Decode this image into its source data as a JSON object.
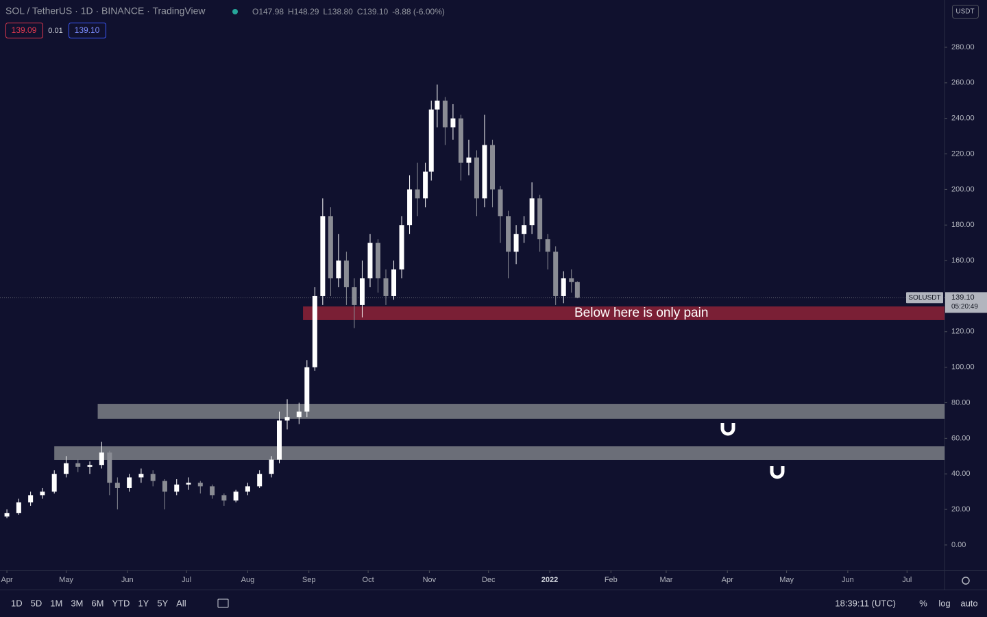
{
  "header": {
    "symbol": "SOL / TetherUS · 1D · BINANCE · TradingView",
    "ohlc": [
      "O147.98",
      "H148.29",
      "L138.80",
      "C139.10",
      "-8.88 (-6.00%)"
    ],
    "sell": "139.09",
    "spread": "0.01",
    "buy": "139.10"
  },
  "chart_data": {
    "type": "candlestick",
    "currency": "USDT",
    "up_color": "#ffffff",
    "down_color": "#8a8c94",
    "x": [
      0,
      6,
      12,
      18,
      24,
      30,
      36,
      42,
      48,
      52,
      56,
      62,
      68,
      74,
      80,
      86,
      92,
      98,
      104,
      110,
      116,
      122,
      128,
      134,
      138,
      142,
      148,
      152,
      156,
      160,
      164,
      168,
      172,
      176,
      180,
      184,
      188,
      192,
      196,
      200,
      204,
      208,
      212,
      215,
      218,
      222,
      226,
      230,
      234,
      238,
      242,
      246,
      250,
      254,
      258,
      262,
      266,
      270,
      274,
      278,
      282,
      286,
      289
    ],
    "open": [
      16,
      18,
      24,
      28,
      30,
      40,
      46,
      44,
      45,
      52,
      35,
      32,
      38,
      40,
      36,
      30,
      34,
      35,
      33,
      28,
      25,
      30,
      33,
      40,
      48,
      70,
      72,
      75,
      100,
      140,
      185,
      150,
      160,
      145,
      135,
      150,
      170,
      150,
      140,
      155,
      180,
      200,
      195,
      210,
      245,
      250,
      235,
      240,
      215,
      218,
      195,
      225,
      200,
      185,
      165,
      175,
      180,
      195,
      172,
      165,
      140,
      150,
      148
    ],
    "high": [
      20,
      26,
      30,
      32,
      42,
      50,
      48,
      47,
      58,
      53,
      38,
      40,
      43,
      42,
      37,
      37,
      38,
      36,
      34,
      29,
      31,
      35,
      42,
      50,
      75,
      82,
      80,
      104,
      145,
      195,
      190,
      175,
      165,
      150,
      160,
      175,
      172,
      155,
      160,
      185,
      208,
      215,
      215,
      250,
      259,
      252,
      248,
      242,
      228,
      222,
      242,
      228,
      202,
      188,
      180,
      185,
      204,
      197,
      175,
      168,
      154,
      155,
      148.29
    ],
    "low": [
      15,
      17,
      22,
      26,
      29,
      38,
      41,
      40,
      43,
      28,
      20,
      30,
      35,
      33,
      20,
      28,
      31,
      29,
      26,
      22,
      24,
      28,
      32,
      38,
      46,
      65,
      68,
      72,
      98,
      135,
      140,
      145,
      135,
      122,
      128,
      145,
      142,
      135,
      138,
      150,
      175,
      185,
      190,
      205,
      235,
      225,
      228,
      205,
      208,
      185,
      190,
      190,
      170,
      150,
      158,
      170,
      175,
      165,
      155,
      135,
      136,
      142,
      138.8
    ],
    "close": [
      18,
      24,
      28,
      30,
      40,
      46,
      44,
      45,
      52,
      35,
      32,
      38,
      40,
      36,
      30,
      34,
      35,
      33,
      28,
      25,
      30,
      33,
      40,
      48,
      70,
      72,
      75,
      100,
      140,
      185,
      150,
      160,
      145,
      135,
      150,
      170,
      150,
      140,
      155,
      180,
      200,
      195,
      210,
      245,
      250,
      235,
      240,
      215,
      218,
      195,
      225,
      200,
      185,
      165,
      175,
      180,
      195,
      172,
      165,
      140,
      150,
      148,
      139.1
    ],
    "xlim": [
      -3.5,
      475
    ],
    "xticks": [
      {
        "value": 0,
        "label": "Apr"
      },
      {
        "value": 30,
        "label": "May"
      },
      {
        "value": 61,
        "label": "Jun"
      },
      {
        "value": 91,
        "label": "Jul"
      },
      {
        "value": 122,
        "label": "Aug"
      },
      {
        "value": 153,
        "label": "Sep"
      },
      {
        "value": 183,
        "label": "Oct"
      },
      {
        "value": 214,
        "label": "Nov"
      },
      {
        "value": 244,
        "label": "Dec"
      },
      {
        "value": 275,
        "label": "2022"
      },
      {
        "value": 306,
        "label": "Feb"
      },
      {
        "value": 334,
        "label": "Mar"
      },
      {
        "value": 365,
        "label": "Apr"
      },
      {
        "value": 395,
        "label": "May"
      },
      {
        "value": 426,
        "label": "Jun"
      },
      {
        "value": 456,
        "label": "Jul"
      }
    ],
    "ylim": [
      -14.3,
      306.6
    ],
    "yticks": [
      {
        "value": 0,
        "label": "0.00"
      },
      {
        "value": 20,
        "label": "20.00"
      },
      {
        "value": 40,
        "label": "40.00"
      },
      {
        "value": 60,
        "label": "60.00"
      },
      {
        "value": 80,
        "label": "80.00"
      },
      {
        "value": 100,
        "label": "100.00"
      },
      {
        "value": 120,
        "label": "120.00"
      },
      {
        "value": 160,
        "label": "160.00"
      },
      {
        "value": 180,
        "label": "180.00"
      },
      {
        "value": 200,
        "label": "200.00"
      },
      {
        "value": 220,
        "label": "220.00"
      },
      {
        "value": 240,
        "label": "240.00"
      },
      {
        "value": 260,
        "label": "260.00"
      },
      {
        "value": 280,
        "label": "280.00"
      }
    ],
    "last_price": {
      "symbol": "SOLUSDT",
      "value": 139.1,
      "label": "139.10",
      "countdown": "05:20:49"
    },
    "zones": [
      {
        "from": 150,
        "low": 126.5,
        "high": 134.2,
        "color": "#7a1f35",
        "label": "Below here is only pain"
      },
      {
        "from": 46,
        "low": 71,
        "high": 79.4,
        "color": "#6b6e78"
      },
      {
        "from": 24,
        "low": 47.8,
        "high": 55.5,
        "color": "#6b6e78"
      }
    ]
  },
  "toolbar": {
    "ranges": [
      "1D",
      "5D",
      "1M",
      "3M",
      "6M",
      "YTD",
      "1Y",
      "5Y",
      "All"
    ],
    "clock": "18:39:11 (UTC)",
    "options": [
      "%",
      "log",
      "auto"
    ]
  }
}
